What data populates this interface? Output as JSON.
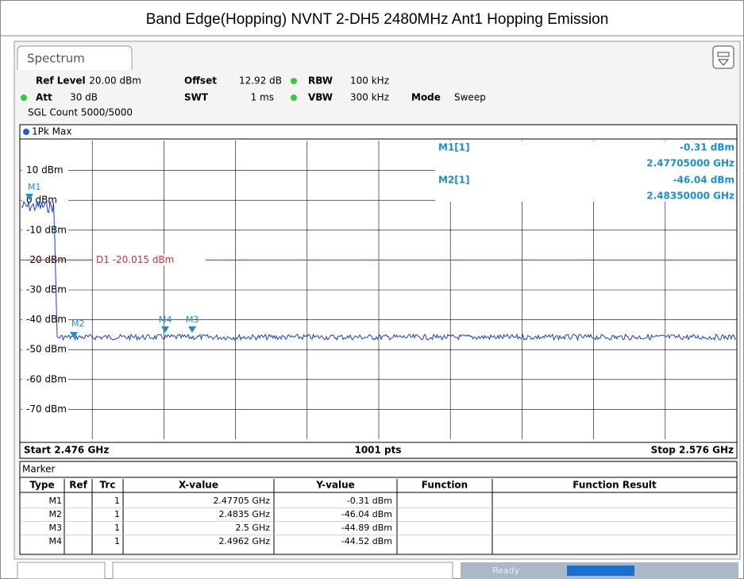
{
  "title": "Band Edge(Hopping) NVNT 2-DH5 2480MHz Ant1 Hopping Emission",
  "tab": "Spectrum",
  "settings": {
    "row1": [
      {
        "label": "Ref Level",
        "value": "20.00 dBm"
      },
      {
        "label": "Offset",
        "value": "12.92 dB"
      },
      {
        "label": "RBW",
        "value": "100 kHz"
      }
    ],
    "row2": [
      {
        "label": "Att",
        "value": "30 dB"
      },
      {
        "label": "SWT",
        "value": "1 ms"
      },
      {
        "label": "VBW",
        "value": "300 kHz"
      },
      {
        "label": "Mode",
        "value": "Sweep"
      }
    ],
    "count": "SGL Count 5000/5000"
  },
  "plot": {
    "trace_label": "1Pk Max",
    "y_labels": [
      "10 dBm",
      "0 dBm",
      "-10 dBm",
      "-20 dBm",
      "-30 dBm",
      "-40 dBm",
      "-50 dBm",
      "-60 dBm",
      "-70 dBm"
    ],
    "display_line": "D1 -20.015 dBm",
    "markers": [
      "M1",
      "M2",
      "M4",
      "M3"
    ],
    "marker_info": [
      {
        "name": "M1[1]",
        "y": "-0.31 dBm",
        "x": "2.47705000 GHz"
      },
      {
        "name": "M2[1]",
        "y": "-46.04 dBm",
        "x": "2.48350000 GHz"
      }
    ],
    "start": "Start 2.476 GHz",
    "points": "1001 pts",
    "stop": "Stop 2.576 GHz"
  },
  "marker_table": {
    "title": "Marker",
    "columns": [
      "Type",
      "Ref",
      "Trc",
      "X-value",
      "Y-value",
      "Function",
      "Function Result"
    ],
    "rows": [
      [
        "M1",
        "",
        "1",
        "2.47705 GHz",
        "-0.31 dBm",
        "",
        ""
      ],
      [
        "M2",
        "",
        "1",
        "2.4835 GHz",
        "-46.04 dBm",
        "",
        ""
      ],
      [
        "M3",
        "",
        "1",
        "2.5 GHz",
        "-44.89 dBm",
        "",
        ""
      ],
      [
        "M4",
        "",
        "1",
        "2.4962 GHz",
        "-44.52 dBm",
        "",
        ""
      ]
    ]
  },
  "status": "Ready"
}
